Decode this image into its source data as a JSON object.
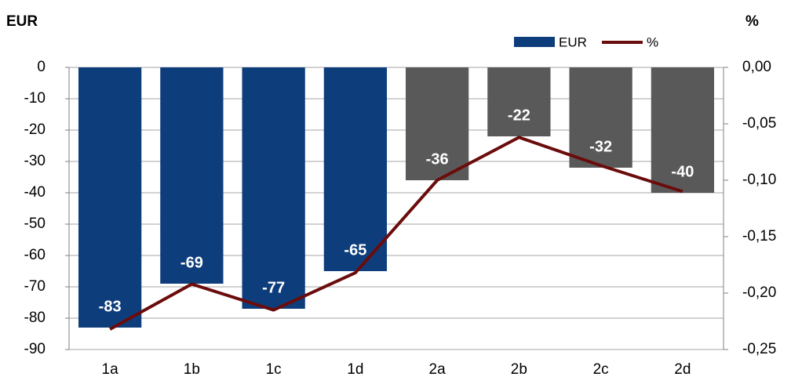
{
  "chart_data": {
    "type": "bar",
    "y_label": "EUR",
    "y2_label": "%",
    "categories": [
      "1a",
      "1b",
      "1c",
      "1d",
      "2a",
      "2b",
      "2c",
      "2d"
    ],
    "series": [
      {
        "name": "EUR",
        "type": "bar",
        "color": "#0e3d7c",
        "colors": [
          "#0e3d7c",
          "#0e3d7c",
          "#0e3d7c",
          "#0e3d7c",
          "#595959",
          "#595959",
          "#595959",
          "#595959"
        ],
        "values": [
          -83,
          -69,
          -77,
          -65,
          -36,
          -22,
          -32,
          -40
        ]
      },
      {
        "name": "%",
        "type": "line",
        "axis": "y2",
        "color": "#6b0c0c",
        "values": [
          -0.232,
          -0.192,
          -0.215,
          -0.182,
          -0.1,
          -0.062,
          -0.087,
          -0.11
        ]
      }
    ],
    "ylim": [
      -90,
      0
    ],
    "yticks": [
      0,
      -10,
      -20,
      -30,
      -40,
      -50,
      -60,
      -70,
      -80,
      -90
    ],
    "y2lim": [
      -0.25,
      0
    ],
    "y2ticks": [
      {
        "value": 0,
        "label": "0,00"
      },
      {
        "value": -0.05,
        "label": "-0,05"
      },
      {
        "value": -0.1,
        "label": "-0,10"
      },
      {
        "value": -0.15,
        "label": "-0,15"
      },
      {
        "value": -0.2,
        "label": "-0,20"
      },
      {
        "value": -0.25,
        "label": "-0,25"
      }
    ],
    "grid": true
  }
}
